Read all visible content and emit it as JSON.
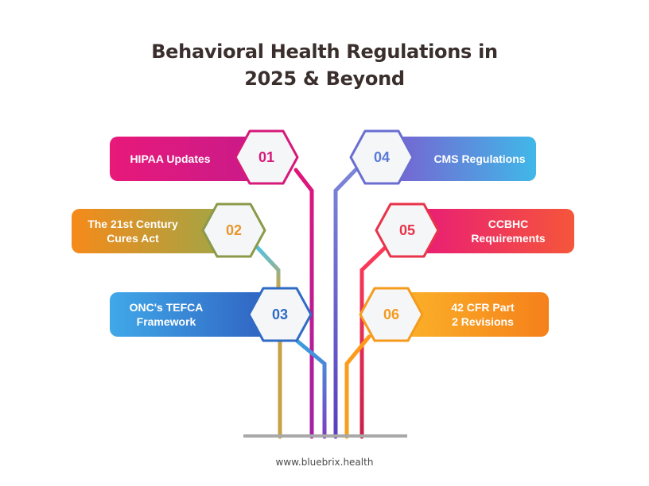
{
  "title": {
    "line1": "Behavioral Health Regulations in",
    "line2": "2025 & Beyond"
  },
  "items": [
    {
      "number": "01",
      "label": "HIPAA Updates",
      "side": "left",
      "color": "#d6197a"
    },
    {
      "number": "02",
      "label": "The 21st Century\nCures Act",
      "side": "left",
      "color": "#8a9a4a"
    },
    {
      "number": "03",
      "label": "ONC's TEFCA\nFramework",
      "side": "left",
      "color": "#2f6bc4"
    },
    {
      "number": "04",
      "label": "CMS Regulations",
      "side": "right",
      "color": "#6a6ed0"
    },
    {
      "number": "05",
      "label": "CCBHC\nRequirements",
      "side": "right",
      "color": "#e8334a"
    },
    {
      "number": "06",
      "label": "42 CFR Part\n2 Revisions",
      "side": "right",
      "color": "#f59a1c"
    }
  ],
  "footer": "www.bluebrix.health"
}
